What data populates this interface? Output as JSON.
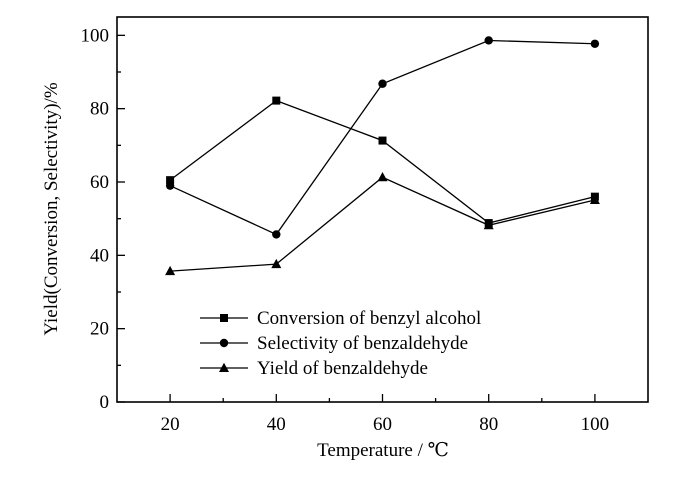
{
  "chart_data": {
    "type": "line",
    "xlabel": "Temperature / ℃",
    "ylabel": "Yield(Conversion, Selectivity)/%",
    "x": [
      20,
      40,
      60,
      80,
      100
    ],
    "xlim": [
      10,
      110
    ],
    "ylim": [
      0,
      105
    ],
    "xticks": [
      20,
      40,
      60,
      80,
      100
    ],
    "yticks": [
      0,
      20,
      40,
      60,
      80,
      100
    ],
    "grid": false,
    "legend_position": "lower-center",
    "series": [
      {
        "name": "Conversion of benzyl alcohol",
        "marker": "square",
        "values": [
          60.5,
          82.2,
          71.3,
          48.8,
          56.0
        ]
      },
      {
        "name": "Selectivity of benzaldehyde",
        "marker": "circle",
        "values": [
          59.0,
          45.7,
          86.8,
          98.6,
          97.7
        ]
      },
      {
        "name": "Yield of benzaldehyde",
        "marker": "triangle",
        "values": [
          35.7,
          37.6,
          61.3,
          48.2,
          55.1
        ]
      }
    ]
  }
}
